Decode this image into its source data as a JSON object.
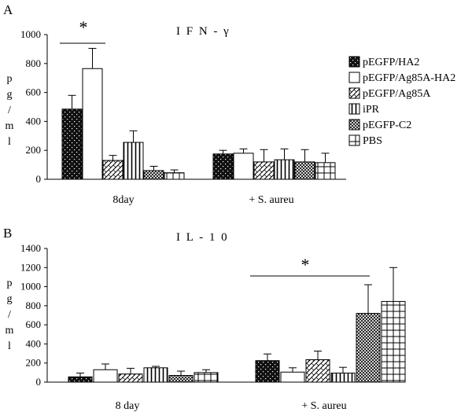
{
  "chart_data": [
    {
      "type": "bar",
      "panel": "A",
      "title": "I F N - γ",
      "ylabel": "p\ng\n/\nm\nl",
      "ylim": [
        0,
        1000
      ],
      "yticks": [
        0,
        200,
        400,
        600,
        800,
        1000
      ],
      "categories": [
        "8day",
        "+ S. aureu"
      ],
      "series": [
        {
          "name": "pEGFP/HA2",
          "values": [
            485,
            175
          ],
          "errors": [
            95,
            25
          ]
        },
        {
          "name": "pEGFP/Ag85A-HA2",
          "values": [
            765,
            180
          ],
          "errors": [
            140,
            30
          ]
        },
        {
          "name": "pEGFP/Ag85A",
          "values": [
            130,
            120
          ],
          "errors": [
            35,
            85
          ]
        },
        {
          "name": "iPR",
          "values": [
            255,
            135
          ],
          "errors": [
            80,
            75
          ]
        },
        {
          "name": "pEGFP-C2",
          "values": [
            60,
            120
          ],
          "errors": [
            30,
            85
          ]
        },
        {
          "name": "PBS",
          "values": [
            45,
            115
          ],
          "errors": [
            20,
            65
          ]
        }
      ],
      "annotation": "*",
      "legend": "right"
    },
    {
      "type": "bar",
      "panel": "B",
      "title": "I L - 1 0",
      "ylabel": "p\ng\n/\nm\nl",
      "ylim": [
        0,
        1400
      ],
      "yticks": [
        0,
        200,
        400,
        600,
        800,
        1000,
        1200,
        1400
      ],
      "categories": [
        "8 day",
        "+ S. aureu"
      ],
      "series": [
        {
          "name": "pEGFP/HA2",
          "values": [
            55,
            225
          ],
          "errors": [
            40,
            70
          ]
        },
        {
          "name": "pEGFP/Ag85A-HA2",
          "values": [
            130,
            105
          ],
          "errors": [
            60,
            45
          ]
        },
        {
          "name": "pEGFP/Ag85A",
          "values": [
            85,
            235
          ],
          "errors": [
            60,
            90
          ]
        },
        {
          "name": "iPR",
          "values": [
            150,
            95
          ],
          "errors": [
            15,
            60
          ]
        },
        {
          "name": "pEGFP-C2",
          "values": [
            70,
            720
          ],
          "errors": [
            45,
            300
          ]
        },
        {
          "name": "PBS",
          "values": [
            100,
            845
          ],
          "errors": [
            30,
            355
          ]
        }
      ],
      "annotation": "*"
    }
  ]
}
